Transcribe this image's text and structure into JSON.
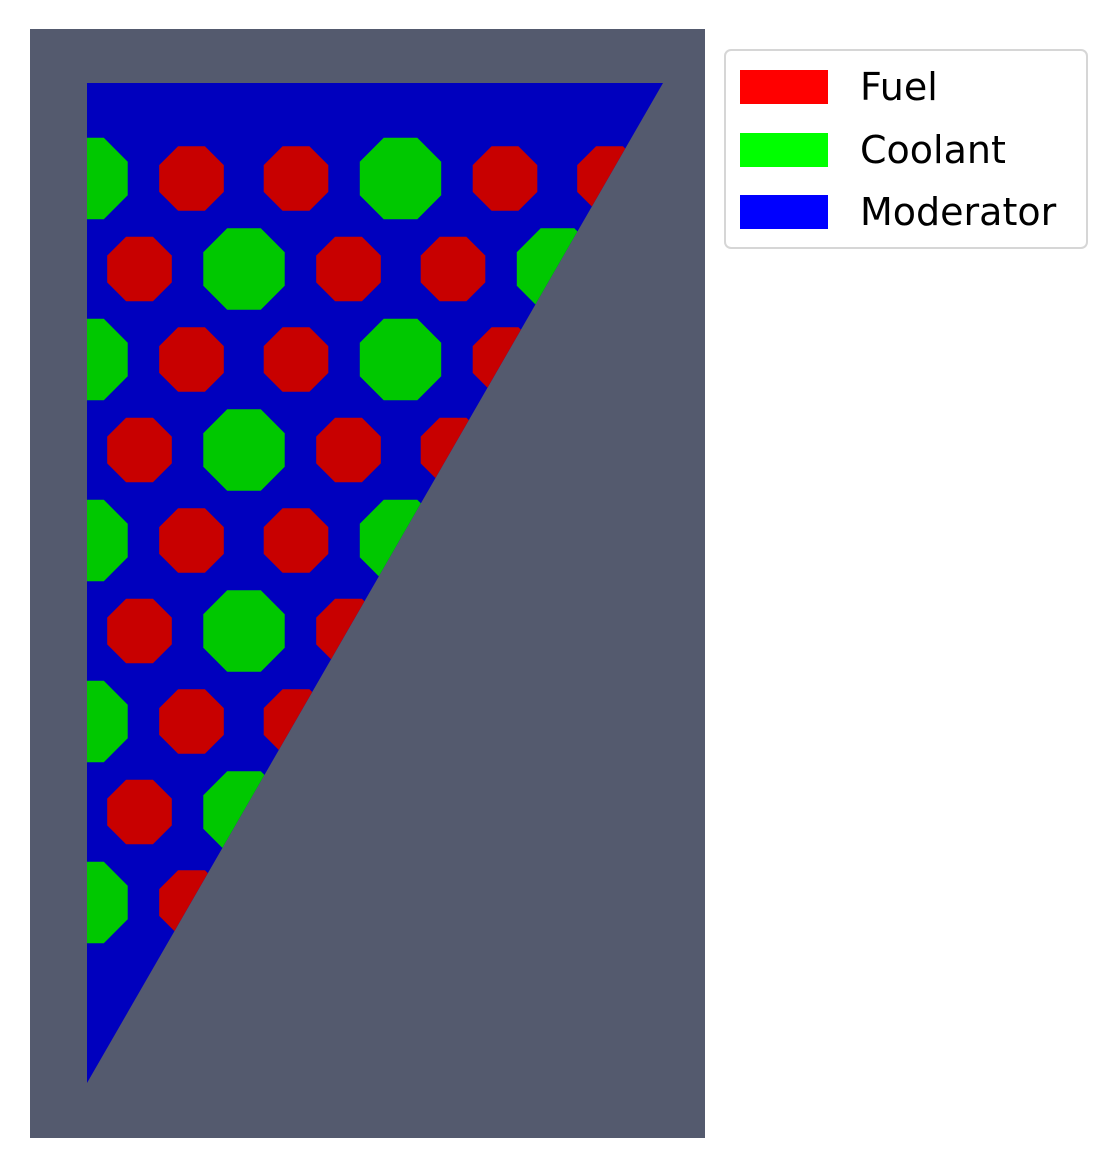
{
  "legend": {
    "entries": [
      {
        "label": "Fuel",
        "color": "#ff0000"
      },
      {
        "label": "Coolant",
        "color": "#00ff00"
      },
      {
        "label": "Moderator",
        "color": "#0000ff"
      }
    ]
  },
  "colors": {
    "background": "#545a6e",
    "fuel": "#c80000",
    "coolant": "#00c800",
    "moderator": "#0000be"
  },
  "pins": [
    {
      "row": 1,
      "col": 1,
      "material": "coolant"
    },
    {
      "row": 1,
      "col": 2,
      "material": "fuel"
    },
    {
      "row": 1,
      "col": 3,
      "material": "fuel"
    },
    {
      "row": 1,
      "col": 4,
      "material": "coolant"
    },
    {
      "row": 1,
      "col": 5,
      "material": "fuel"
    },
    {
      "row": 1,
      "col": 6,
      "material": "fuel"
    },
    {
      "row": 2,
      "col": 1,
      "material": "fuel"
    },
    {
      "row": 2,
      "col": 2,
      "material": "coolant"
    },
    {
      "row": 2,
      "col": 3,
      "material": "fuel"
    },
    {
      "row": 2,
      "col": 4,
      "material": "fuel"
    },
    {
      "row": 2,
      "col": 5,
      "material": "coolant"
    },
    {
      "row": 3,
      "col": 1,
      "material": "coolant"
    },
    {
      "row": 3,
      "col": 2,
      "material": "fuel"
    },
    {
      "row": 3,
      "col": 3,
      "material": "fuel"
    },
    {
      "row": 3,
      "col": 4,
      "material": "coolant"
    },
    {
      "row": 3,
      "col": 5,
      "material": "fuel"
    },
    {
      "row": 4,
      "col": 1,
      "material": "fuel"
    },
    {
      "row": 4,
      "col": 2,
      "material": "coolant"
    },
    {
      "row": 4,
      "col": 3,
      "material": "fuel"
    },
    {
      "row": 4,
      "col": 4,
      "material": "fuel"
    },
    {
      "row": 5,
      "col": 1,
      "material": "coolant"
    },
    {
      "row": 5,
      "col": 2,
      "material": "fuel"
    },
    {
      "row": 5,
      "col": 3,
      "material": "fuel"
    },
    {
      "row": 5,
      "col": 4,
      "material": "coolant"
    },
    {
      "row": 6,
      "col": 1,
      "material": "fuel"
    },
    {
      "row": 6,
      "col": 2,
      "material": "coolant"
    },
    {
      "row": 6,
      "col": 3,
      "material": "fuel"
    },
    {
      "row": 7,
      "col": 1,
      "material": "coolant"
    },
    {
      "row": 7,
      "col": 2,
      "material": "fuel"
    },
    {
      "row": 7,
      "col": 3,
      "material": "fuel"
    },
    {
      "row": 8,
      "col": 1,
      "material": "fuel"
    },
    {
      "row": 8,
      "col": 2,
      "material": "coolant"
    },
    {
      "row": 9,
      "col": 1,
      "material": "coolant"
    },
    {
      "row": 9,
      "col": 2,
      "material": "fuel"
    }
  ]
}
